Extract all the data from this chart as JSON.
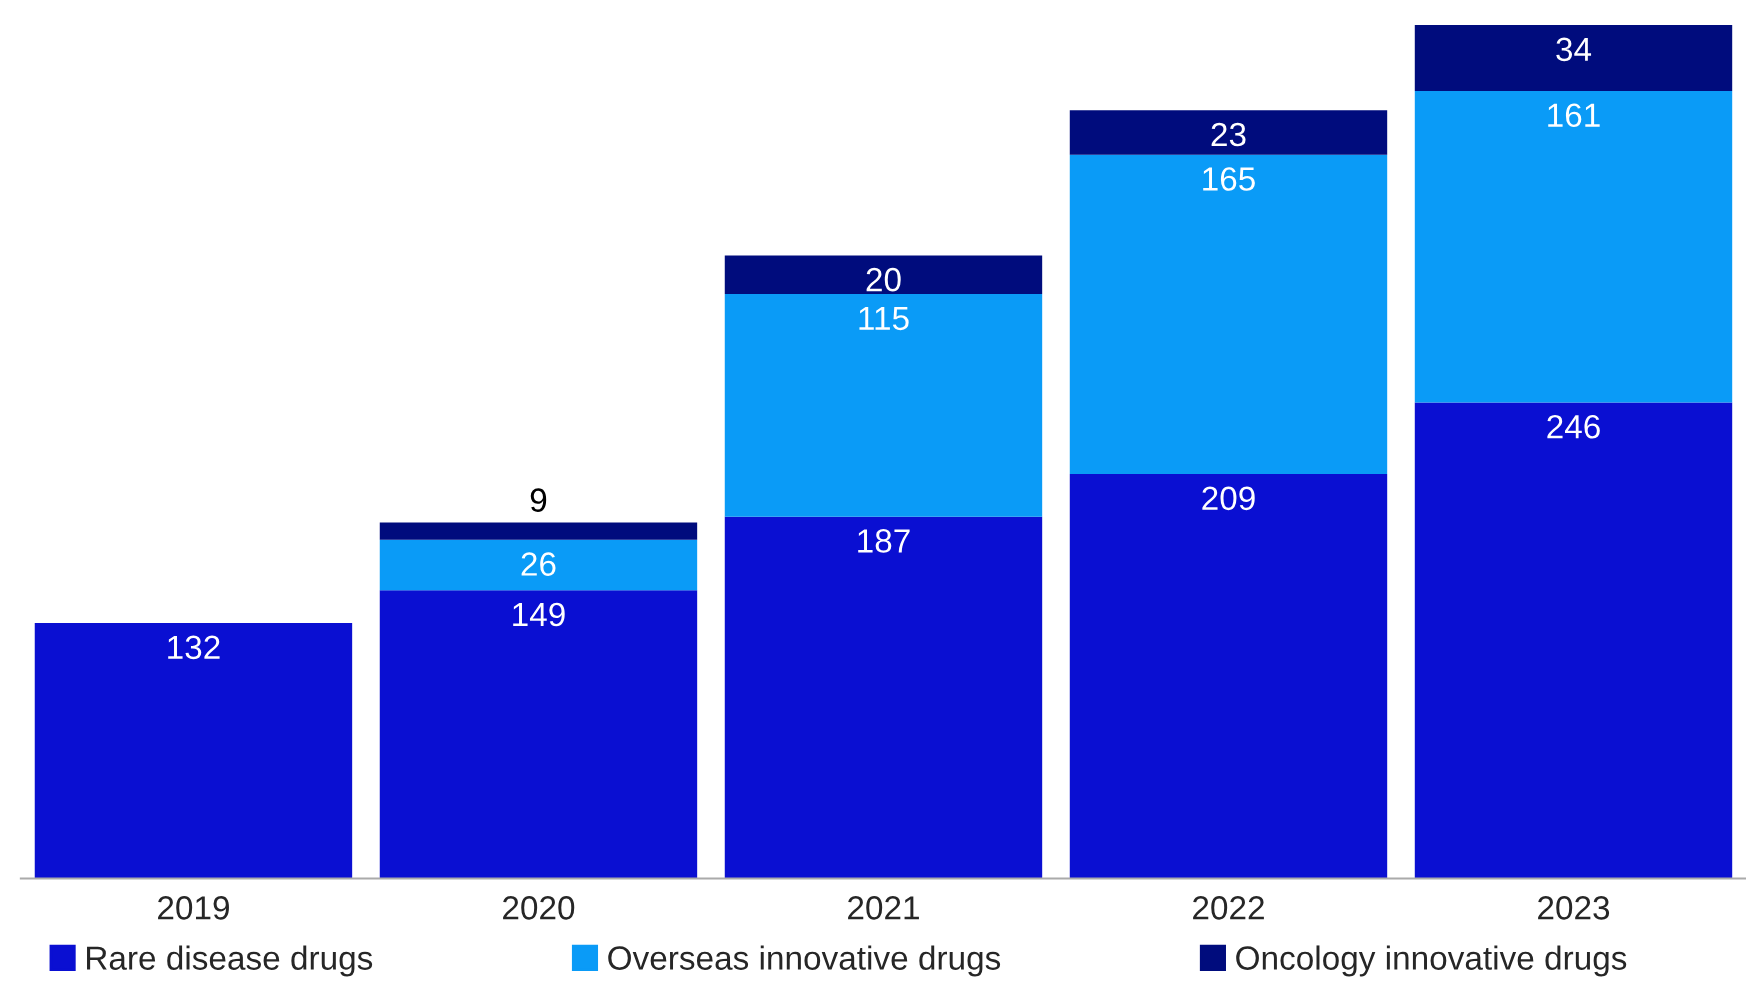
{
  "chart_data": {
    "type": "bar",
    "stacked": true,
    "data_labels": true,
    "legend": "bottom",
    "grid": false,
    "categories": [
      "2019",
      "2020",
      "2021",
      "2022",
      "2023"
    ],
    "series": [
      {
        "name": "Rare disease drugs",
        "color": "#0a0fd2",
        "values": [
          132,
          149,
          187,
          209,
          246
        ]
      },
      {
        "name": "Overseas innovative drugs",
        "color": "#0a9bf7",
        "values": [
          null,
          26,
          115,
          165,
          161
        ]
      },
      {
        "name": "Oncology innovative drugs",
        "color": "#000c7d",
        "values": [
          null,
          9,
          20,
          23,
          34
        ]
      }
    ]
  }
}
